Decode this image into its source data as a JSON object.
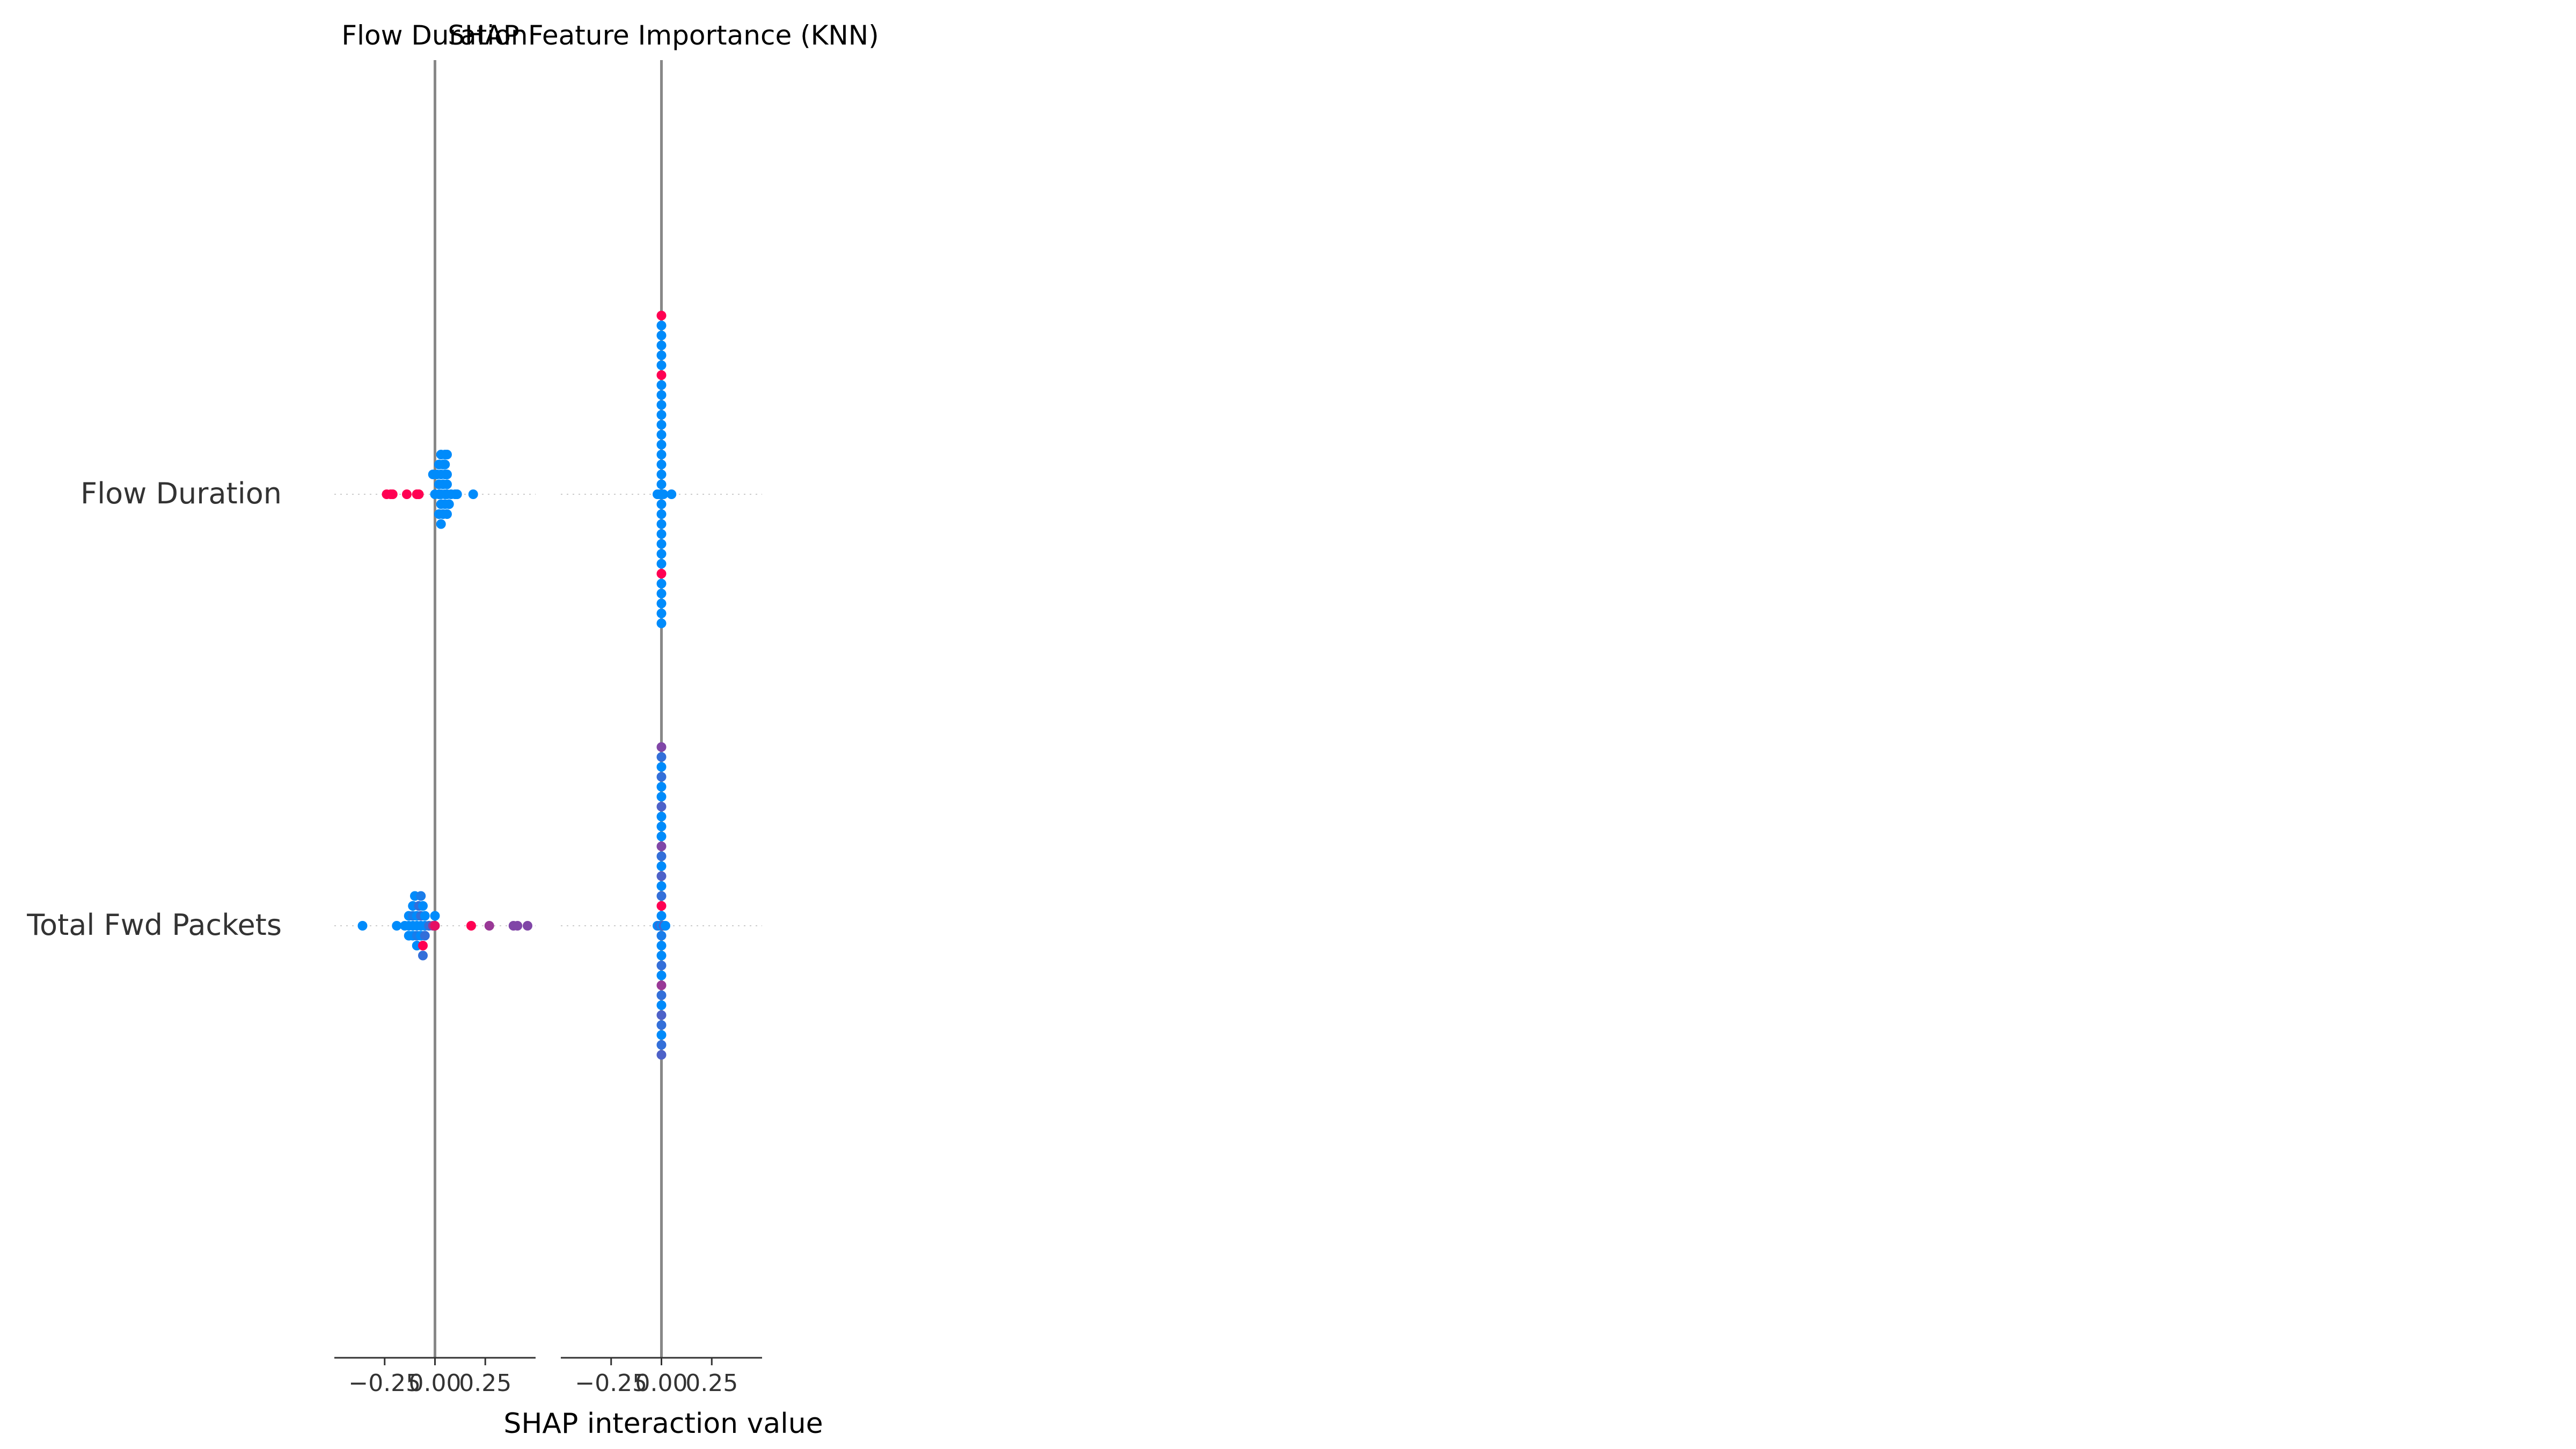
{
  "chart_data": {
    "type": "scatter",
    "title": "SHAP Feature Importance (KNN)",
    "xlabel": "SHAP interaction value",
    "features": [
      "Flow Duration",
      "Total Fwd Packets"
    ],
    "xlim": [
      -0.5,
      0.5
    ],
    "xticks": [
      "−0.25",
      "0.00",
      "0.25"
    ],
    "colors": {
      "low": "#008bfb",
      "high": "#ff0052",
      "mid": "#8a3fd6",
      "axis": "#888888",
      "row_line": "#cccccc"
    },
    "panels": [
      {
        "title": "Flow Duration",
        "rows": [
          {
            "feature": "Flow Duration",
            "points": [
              {
                "x": -0.24,
                "y": 0,
                "c": 1
              },
              {
                "x": -0.22,
                "y": 0,
                "c": 1
              },
              {
                "x": -0.21,
                "y": 0,
                "c": 1
              },
              {
                "x": -0.14,
                "y": 0,
                "c": 1
              },
              {
                "x": -0.09,
                "y": 0,
                "c": 1
              },
              {
                "x": -0.08,
                "y": 0,
                "c": 1
              },
              {
                "x": 0.0,
                "y": 0,
                "c": 0
              },
              {
                "x": 0.02,
                "y": 0,
                "c": 0
              },
              {
                "x": 0.03,
                "y": 0,
                "c": 0
              },
              {
                "x": 0.05,
                "y": 0,
                "c": 0
              },
              {
                "x": 0.06,
                "y": 0,
                "c": 0
              },
              {
                "x": 0.08,
                "y": 0,
                "c": 0
              },
              {
                "x": 0.1,
                "y": 0,
                "c": 0
              },
              {
                "x": 0.11,
                "y": 0,
                "c": 0
              },
              {
                "x": 0.19,
                "y": 0,
                "c": 0
              },
              {
                "x": 0.02,
                "y": 1,
                "c": 0
              },
              {
                "x": 0.04,
                "y": 1,
                "c": 0
              },
              {
                "x": 0.06,
                "y": 1,
                "c": 0
              },
              {
                "x": 0.03,
                "y": -1,
                "c": 0
              },
              {
                "x": 0.05,
                "y": -1,
                "c": 0
              },
              {
                "x": 0.07,
                "y": -1,
                "c": 0
              },
              {
                "x": -0.01,
                "y": 2,
                "c": 0
              },
              {
                "x": 0.01,
                "y": 2,
                "c": 0
              },
              {
                "x": 0.03,
                "y": 2,
                "c": 0
              },
              {
                "x": 0.05,
                "y": 2,
                "c": 0
              },
              {
                "x": 0.06,
                "y": 2,
                "c": 0
              },
              {
                "x": 0.02,
                "y": -2,
                "c": 0
              },
              {
                "x": 0.04,
                "y": -2,
                "c": 0
              },
              {
                "x": 0.06,
                "y": -2,
                "c": 0
              },
              {
                "x": 0.02,
                "y": 3,
                "c": 0
              },
              {
                "x": 0.04,
                "y": 3,
                "c": 0
              },
              {
                "x": 0.05,
                "y": 3,
                "c": 0
              },
              {
                "x": 0.03,
                "y": -3,
                "c": 0
              },
              {
                "x": 0.03,
                "y": 4,
                "c": 0
              },
              {
                "x": 0.05,
                "y": 4,
                "c": 0
              },
              {
                "x": 0.06,
                "y": 4,
                "c": 0
              }
            ]
          },
          {
            "feature": "Total Fwd Packets",
            "points": [
              {
                "x": -0.36,
                "y": 0,
                "c": 0
              },
              {
                "x": -0.19,
                "y": 0,
                "c": 0
              },
              {
                "x": -0.15,
                "y": 0,
                "c": 0
              },
              {
                "x": -0.13,
                "y": 0,
                "c": 0
              },
              {
                "x": -0.11,
                "y": 0,
                "c": 0
              },
              {
                "x": -0.09,
                "y": 0,
                "c": 0
              },
              {
                "x": -0.07,
                "y": 0,
                "c": 0
              },
              {
                "x": -0.05,
                "y": 0,
                "c": 0
              },
              {
                "x": -0.03,
                "y": 0,
                "c": 0.2
              },
              {
                "x": -0.01,
                "y": 0,
                "c": 0.6
              },
              {
                "x": 0.0,
                "y": 0,
                "c": 0.9
              },
              {
                "x": 0.18,
                "y": 0,
                "c": 1
              },
              {
                "x": 0.27,
                "y": 0,
                "c": 0.6
              },
              {
                "x": 0.39,
                "y": 0,
                "c": 0.5
              },
              {
                "x": 0.41,
                "y": 0,
                "c": 0.5
              },
              {
                "x": 0.46,
                "y": 0,
                "c": 0.5
              },
              {
                "x": -0.13,
                "y": 1,
                "c": 0
              },
              {
                "x": -0.11,
                "y": 1,
                "c": 0.1
              },
              {
                "x": -0.09,
                "y": 1,
                "c": 0
              },
              {
                "x": -0.07,
                "y": 1,
                "c": 0.2
              },
              {
                "x": -0.05,
                "y": 1,
                "c": 0
              },
              {
                "x": 0.0,
                "y": 1,
                "c": 0
              },
              {
                "x": -0.13,
                "y": -1,
                "c": 0
              },
              {
                "x": -0.11,
                "y": -1,
                "c": 0
              },
              {
                "x": -0.09,
                "y": -1,
                "c": 0.1
              },
              {
                "x": -0.07,
                "y": -1,
                "c": 0
              },
              {
                "x": -0.05,
                "y": -1,
                "c": 0.2
              },
              {
                "x": -0.11,
                "y": 2,
                "c": 0
              },
              {
                "x": -0.08,
                "y": 2,
                "c": 0.2
              },
              {
                "x": -0.06,
                "y": 2,
                "c": 0
              },
              {
                "x": -0.09,
                "y": -2,
                "c": 0
              },
              {
                "x": -0.06,
                "y": -2,
                "c": 1
              },
              {
                "x": -0.1,
                "y": 3,
                "c": 0
              },
              {
                "x": -0.07,
                "y": 3,
                "c": 0.1
              },
              {
                "x": -0.06,
                "y": -3,
                "c": 0.2
              }
            ]
          }
        ]
      },
      {
        "title": "",
        "rows": [
          {
            "feature": "Flow Duration",
            "points": [
              {
                "x": -0.02,
                "y": 0,
                "c": 0
              },
              {
                "x": -0.01,
                "y": 0,
                "c": 0
              },
              {
                "x": 0.0,
                "y": 0,
                "c": 0
              },
              {
                "x": 0.01,
                "y": 0,
                "c": 0
              },
              {
                "x": 0.05,
                "y": 0,
                "c": 0
              },
              {
                "x": 0.0,
                "y": 1,
                "c": 0
              },
              {
                "x": 0.0,
                "y": -1,
                "c": 0
              },
              {
                "x": 0.0,
                "y": 2,
                "c": 0
              },
              {
                "x": 0.0,
                "y": -2,
                "c": 0
              },
              {
                "x": 0.0,
                "y": 3,
                "c": 0
              },
              {
                "x": 0.0,
                "y": -3,
                "c": 0
              },
              {
                "x": 0.0,
                "y": 4,
                "c": 0
              },
              {
                "x": 0.0,
                "y": -4,
                "c": 0
              },
              {
                "x": 0.0,
                "y": 5,
                "c": 0
              },
              {
                "x": 0.0,
                "y": -5,
                "c": 0
              },
              {
                "x": 0.0,
                "y": 6,
                "c": 0
              },
              {
                "x": 0.0,
                "y": -6,
                "c": 0
              },
              {
                "x": 0.0,
                "y": 7,
                "c": 0
              },
              {
                "x": 0.0,
                "y": -7,
                "c": 0
              },
              {
                "x": 0.0,
                "y": 8,
                "c": 0
              },
              {
                "x": 0.0,
                "y": -8,
                "c": 1
              },
              {
                "x": 0.0,
                "y": 9,
                "c": 0
              },
              {
                "x": 0.0,
                "y": -9,
                "c": 0
              },
              {
                "x": 0.0,
                "y": 10,
                "c": 0
              },
              {
                "x": 0.0,
                "y": -10,
                "c": 0
              },
              {
                "x": 0.0,
                "y": 11,
                "c": 0
              },
              {
                "x": 0.0,
                "y": -11,
                "c": 0
              },
              {
                "x": 0.0,
                "y": 12,
                "c": 1
              },
              {
                "x": 0.0,
                "y": -12,
                "c": 0
              },
              {
                "x": 0.0,
                "y": 13,
                "c": 0
              },
              {
                "x": 0.0,
                "y": -13,
                "c": 0
              },
              {
                "x": 0.0,
                "y": 14,
                "c": 0
              },
              {
                "x": 0.0,
                "y": 15,
                "c": 0
              },
              {
                "x": 0.0,
                "y": 16,
                "c": 0
              },
              {
                "x": 0.0,
                "y": 17,
                "c": 0
              },
              {
                "x": 0.0,
                "y": 18,
                "c": 1
              }
            ]
          },
          {
            "feature": "Total Fwd Packets",
            "points": [
              {
                "x": -0.02,
                "y": 0,
                "c": 0
              },
              {
                "x": -0.01,
                "y": 0,
                "c": 0.2
              },
              {
                "x": 0.0,
                "y": 0,
                "c": 0
              },
              {
                "x": 0.01,
                "y": 0,
                "c": 0.3
              },
              {
                "x": 0.02,
                "y": 0,
                "c": 0
              },
              {
                "x": 0.0,
                "y": 1,
                "c": 0
              },
              {
                "x": 0.0,
                "y": -1,
                "c": 0.1
              },
              {
                "x": 0.0,
                "y": 2,
                "c": 1
              },
              {
                "x": 0.0,
                "y": -2,
                "c": 0
              },
              {
                "x": 0.0,
                "y": 3,
                "c": 0.2
              },
              {
                "x": 0.0,
                "y": -3,
                "c": 0
              },
              {
                "x": 0.0,
                "y": 4,
                "c": 0
              },
              {
                "x": 0.0,
                "y": -4,
                "c": 0.2
              },
              {
                "x": 0.0,
                "y": 5,
                "c": 0.3
              },
              {
                "x": 0.0,
                "y": -5,
                "c": 0
              },
              {
                "x": 0.0,
                "y": 6,
                "c": 0
              },
              {
                "x": 0.0,
                "y": -6,
                "c": 0.6
              },
              {
                "x": 0.0,
                "y": 7,
                "c": 0.2
              },
              {
                "x": 0.0,
                "y": -7,
                "c": 0.2
              },
              {
                "x": 0.0,
                "y": 8,
                "c": 0.5
              },
              {
                "x": 0.0,
                "y": -8,
                "c": 0
              },
              {
                "x": 0.0,
                "y": 9,
                "c": 0
              },
              {
                "x": 0.0,
                "y": -9,
                "c": 0.3
              },
              {
                "x": 0.0,
                "y": 10,
                "c": 0
              },
              {
                "x": 0.0,
                "y": -10,
                "c": 0.2
              },
              {
                "x": 0.0,
                "y": 11,
                "c": 0
              },
              {
                "x": 0.0,
                "y": -11,
                "c": 0
              },
              {
                "x": 0.0,
                "y": 12,
                "c": 0.3
              },
              {
                "x": 0.0,
                "y": -12,
                "c": 0.2
              },
              {
                "x": 0.0,
                "y": 13,
                "c": 0
              },
              {
                "x": 0.0,
                "y": -13,
                "c": 0.3
              },
              {
                "x": 0.0,
                "y": 14,
                "c": 0
              },
              {
                "x": 0.0,
                "y": 15,
                "c": 0.2
              },
              {
                "x": 0.0,
                "y": 16,
                "c": 0
              },
              {
                "x": 0.0,
                "y": 17,
                "c": 0.2
              },
              {
                "x": 0.0,
                "y": 18,
                "c": 0.5
              }
            ]
          }
        ]
      }
    ]
  }
}
